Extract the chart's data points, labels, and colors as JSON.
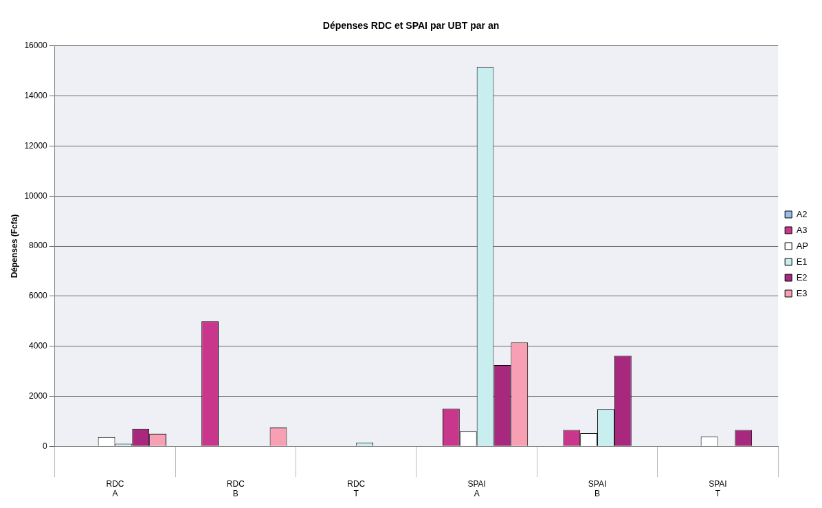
{
  "chart_data": {
    "type": "bar",
    "title": "Dépenses RDC et SPAI par UBT par an",
    "ylabel": "Dépenses (Fcfa)",
    "categories": [
      "RDC\nA",
      "RDC\nB",
      "RDC\nT",
      "SPAI\nA",
      "SPAI\nB",
      "SPAI\nT"
    ],
    "series": [
      {
        "name": "A2",
        "color": "#99bbee",
        "values": [
          0,
          0,
          0,
          0,
          0,
          0
        ]
      },
      {
        "name": "A3",
        "color": "#c8378c",
        "values": [
          0,
          5000,
          0,
          1500,
          650,
          0
        ]
      },
      {
        "name": "AP",
        "color": "#ffffff",
        "values": [
          370,
          0,
          0,
          600,
          530,
          380
        ]
      },
      {
        "name": "E1",
        "color": "#c8eef0",
        "values": [
          100,
          0,
          150,
          15150,
          1480,
          0
        ]
      },
      {
        "name": "E2",
        "color": "#a8287e",
        "values": [
          700,
          0,
          0,
          3250,
          3620,
          650
        ]
      },
      {
        "name": "E3",
        "color": "#f7a0b4",
        "values": [
          500,
          750,
          0,
          4150,
          0,
          0
        ]
      }
    ],
    "ylim": [
      0,
      16000
    ],
    "yticks": [
      0,
      2000,
      4000,
      6000,
      8000,
      10000,
      12000,
      14000,
      16000
    ],
    "grid": "y",
    "legend": "right"
  }
}
